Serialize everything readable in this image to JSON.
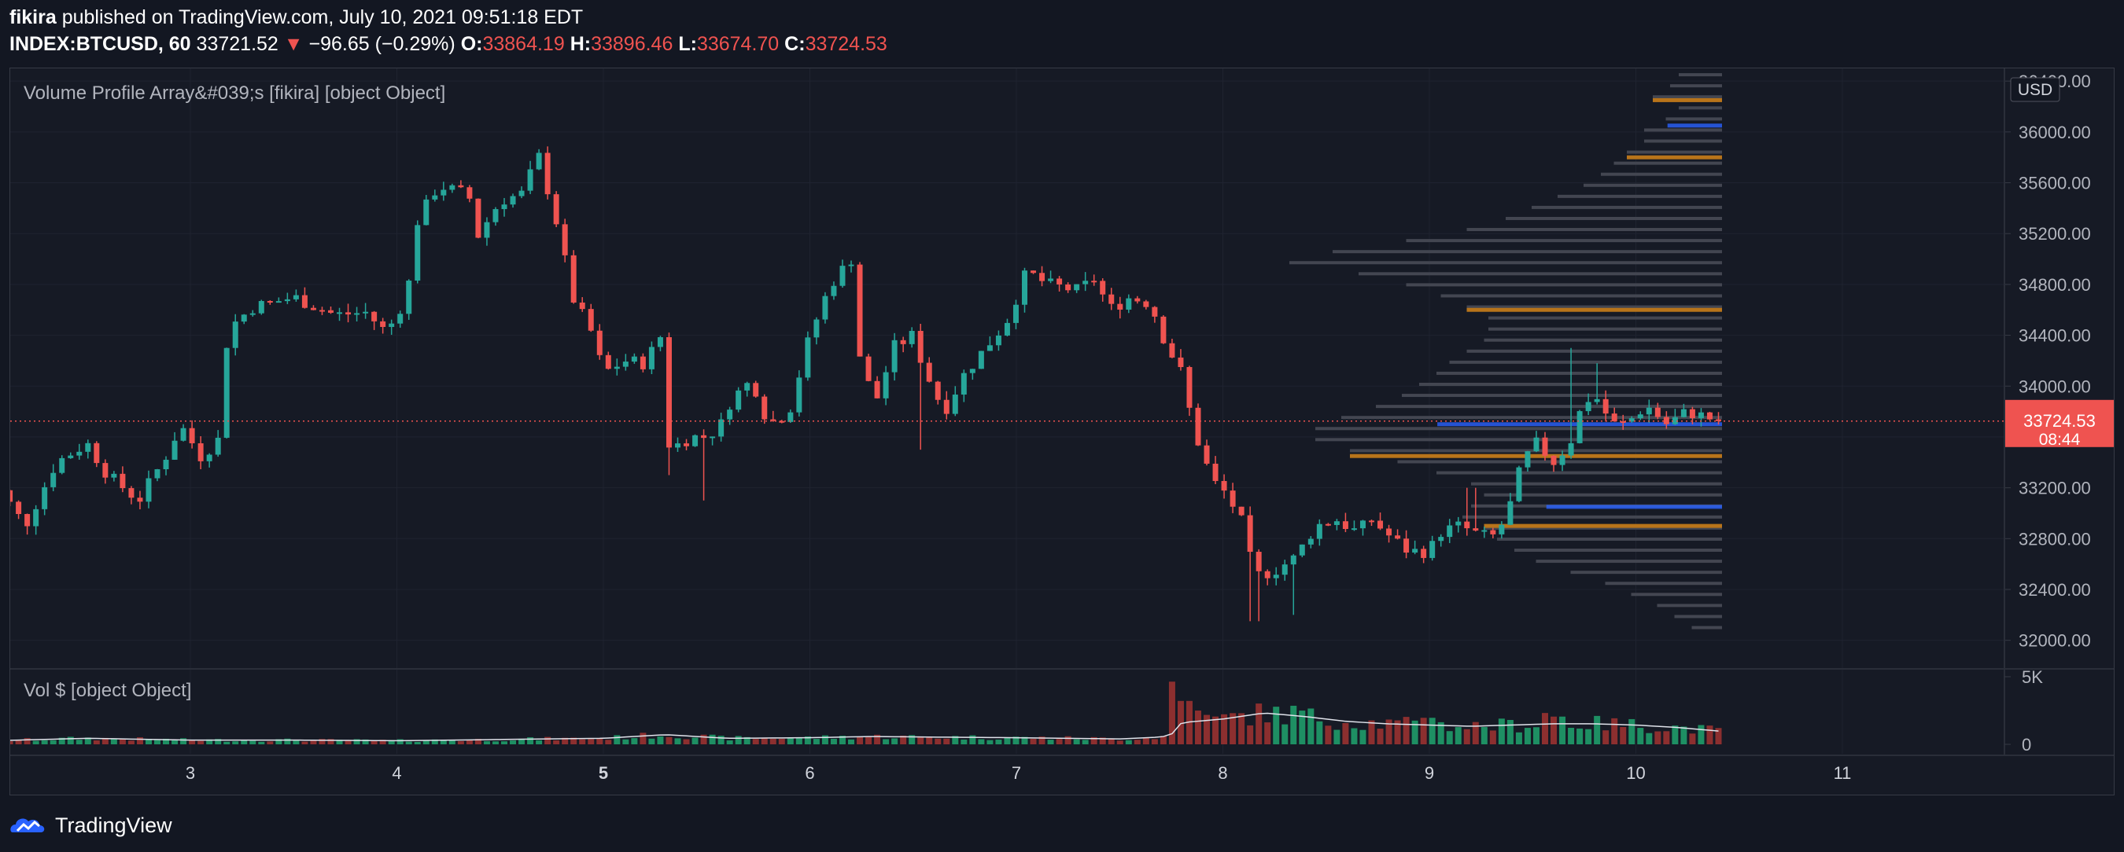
{
  "header": {
    "author": "fikira",
    "published_text": "published on TradingView.com, July 10, 2021 09:51:18 EDT",
    "symbol": "INDEX:BTCUSD, 60",
    "last": "33721.52",
    "change": "−96.65 (−0.29%)",
    "o_label": "O:",
    "o": "33864.19",
    "h_label": "H:",
    "h": "33896.46",
    "l_label": "L:",
    "l": "33674.70",
    "c_label": "C:",
    "c": "33724.53"
  },
  "indicator_title": "Volume Profile Array&#039;s [fikira] [object Object]",
  "volume_title": "Vol $ [object Object]",
  "currency_label": "USD",
  "price_tag": {
    "price": "33724.53",
    "countdown": "08:44",
    "color": "#ef5350"
  },
  "footer": {
    "brand": "TradingView"
  },
  "colors": {
    "up": "#26a69a",
    "down": "#ef5350",
    "vol_up": "#1e8f63",
    "vol_down": "#8c2f2f",
    "profile": "#434651",
    "orange": "#b8741a",
    "blue": "#2962ff"
  },
  "chart_data": {
    "type": "candlestick",
    "symbol": "INDEX:BTCUSD",
    "interval": "60",
    "ylim": [
      31800,
      36500
    ],
    "y_ticks": [
      "36400.00",
      "36000.00",
      "35600.00",
      "35200.00",
      "34800.00",
      "34400.00",
      "34000.00",
      "33600.00",
      "33200.00",
      "32800.00",
      "32400.00",
      "32000.00"
    ],
    "x_ticks": [
      "3",
      "4",
      "5",
      "6",
      "7",
      "8",
      "9",
      "10",
      "11"
    ],
    "vol_ticks": [
      "5K",
      "0"
    ],
    "last_price": 33724.53,
    "keypoints": [
      [
        2.05,
        33250
      ],
      [
        2.2,
        32900
      ],
      [
        2.35,
        33400
      ],
      [
        2.5,
        33550
      ],
      [
        2.6,
        33300
      ],
      [
        2.75,
        33100
      ],
      [
        2.9,
        33500
      ],
      [
        2.95,
        33700
      ],
      [
        3.05,
        33450
      ],
      [
        3.15,
        33600
      ],
      [
        3.18,
        34450
      ],
      [
        3.3,
        34620
      ],
      [
        3.5,
        34700
      ],
      [
        3.7,
        34560
      ],
      [
        3.85,
        34580
      ],
      [
        3.95,
        34420
      ],
      [
        4.05,
        34720
      ],
      [
        4.1,
        35300
      ],
      [
        4.2,
        35580
      ],
      [
        4.35,
        35500
      ],
      [
        4.38,
        35150
      ],
      [
        4.5,
        35460
      ],
      [
        4.62,
        35520
      ],
      [
        4.68,
        35850
      ],
      [
        4.78,
        35250
      ],
      [
        4.85,
        34700
      ],
      [
        4.95,
        34400
      ],
      [
        5.0,
        34100
      ],
      [
        5.1,
        34200
      ],
      [
        5.2,
        34180
      ],
      [
        5.28,
        34400
      ],
      [
        5.32,
        33500
      ],
      [
        5.42,
        33600
      ],
      [
        5.5,
        33600
      ],
      [
        5.57,
        33700
      ],
      [
        5.62,
        33900
      ],
      [
        5.72,
        34050
      ],
      [
        5.8,
        33700
      ],
      [
        5.9,
        33800
      ],
      [
        6.0,
        34400
      ],
      [
        6.1,
        34800
      ],
      [
        6.2,
        35000
      ],
      [
        6.25,
        34100
      ],
      [
        6.33,
        33900
      ],
      [
        6.4,
        34300
      ],
      [
        6.5,
        34400
      ],
      [
        6.55,
        34150
      ],
      [
        6.65,
        33800
      ],
      [
        6.75,
        34100
      ],
      [
        6.85,
        34300
      ],
      [
        6.95,
        34500
      ],
      [
        7.05,
        34900
      ],
      [
        7.15,
        34800
      ],
      [
        7.3,
        34750
      ],
      [
        7.38,
        34850
      ],
      [
        7.45,
        34600
      ],
      [
        7.55,
        34700
      ],
      [
        7.65,
        34650
      ],
      [
        7.72,
        34350
      ],
      [
        7.8,
        34100
      ],
      [
        7.86,
        33650
      ],
      [
        7.95,
        33250
      ],
      [
        8.02,
        33150
      ],
      [
        8.1,
        32900
      ],
      [
        8.15,
        32500
      ],
      [
        8.25,
        32550
      ],
      [
        8.35,
        32650
      ],
      [
        8.45,
        32900
      ],
      [
        8.55,
        32950
      ],
      [
        8.65,
        32850
      ],
      [
        8.72,
        32950
      ],
      [
        8.82,
        32800
      ],
      [
        8.9,
        32700
      ],
      [
        9.0,
        32700
      ],
      [
        9.05,
        32850
      ],
      [
        9.15,
        32900
      ],
      [
        9.25,
        32820
      ],
      [
        9.32,
        32820
      ],
      [
        9.38,
        33000
      ],
      [
        9.45,
        33400
      ],
      [
        9.52,
        33550
      ],
      [
        9.6,
        33400
      ],
      [
        9.68,
        33550
      ],
      [
        9.75,
        33900
      ],
      [
        9.82,
        33900
      ],
      [
        9.88,
        33700
      ],
      [
        9.95,
        33700
      ],
      [
        10.05,
        33850
      ],
      [
        10.15,
        33700
      ],
      [
        10.25,
        33800
      ],
      [
        10.35,
        33750
      ],
      [
        10.4,
        33724
      ]
    ],
    "spikes": [
      [
        5.32,
        33300
      ],
      [
        5.5,
        33100
      ],
      [
        6.55,
        33500
      ],
      [
        8.15,
        32150
      ],
      [
        8.35,
        32200
      ],
      [
        9.2,
        33200
      ],
      [
        9.7,
        34300
      ],
      [
        9.82,
        34180
      ]
    ],
    "volume_keypoints": [
      [
        2.05,
        300
      ],
      [
        2.5,
        500
      ],
      [
        3.0,
        350
      ],
      [
        3.5,
        350
      ],
      [
        4.0,
        300
      ],
      [
        4.5,
        400
      ],
      [
        5.0,
        500
      ],
      [
        5.3,
        800
      ],
      [
        5.6,
        500
      ],
      [
        6.0,
        550
      ],
      [
        6.3,
        650
      ],
      [
        6.6,
        600
      ],
      [
        7.0,
        550
      ],
      [
        7.5,
        450
      ],
      [
        7.7,
        600
      ],
      [
        7.75,
        800
      ],
      [
        7.8,
        1800
      ],
      [
        8.0,
        2100
      ],
      [
        8.2,
        2600
      ],
      [
        8.4,
        2300
      ],
      [
        8.6,
        1900
      ],
      [
        8.8,
        1700
      ],
      [
        9.0,
        1600
      ],
      [
        9.2,
        1500
      ],
      [
        9.4,
        1600
      ],
      [
        9.6,
        1700
      ],
      [
        9.8,
        1700
      ],
      [
        10.0,
        1600
      ],
      [
        10.2,
        1400
      ],
      [
        10.4,
        1100
      ]
    ],
    "volume_spikes": [
      [
        7.78,
        5200
      ],
      [
        7.82,
        3600
      ],
      [
        7.88,
        2800
      ],
      [
        8.35,
        3200
      ],
      [
        8.38,
        2800
      ],
      [
        9.0,
        2200
      ],
      [
        9.58,
        2600
      ],
      [
        9.62,
        2300
      ]
    ],
    "volume_ylim": [
      0,
      6000
    ],
    "volume_profile": {
      "price_start": 32100,
      "price_step": 87,
      "widths": [
        0.07,
        0.11,
        0.15,
        0.21,
        0.27,
        0.35,
        0.43,
        0.48,
        0.52,
        0.55,
        0.6,
        0.58,
        0.55,
        0.58,
        0.66,
        0.75,
        0.86,
        0.94,
        0.94,
        0.88,
        0.8,
        0.74,
        0.7,
        0.66,
        0.63,
        0.59,
        0.55,
        0.54,
        0.54,
        0.59,
        0.65,
        0.73,
        0.84,
        1.0,
        0.9,
        0.73,
        0.59,
        0.5,
        0.44,
        0.38,
        0.32,
        0.28,
        0.25,
        0.22,
        0.18,
        0.18,
        0.13,
        0.1,
        0.16,
        0.12,
        0.1,
        0.16,
        0.11,
        0.08,
        0.08
      ],
      "orange_levels": [
        32900,
        33450,
        34600,
        35800,
        36250
      ],
      "blue_levels": [
        33050,
        33700,
        36050
      ]
    }
  }
}
